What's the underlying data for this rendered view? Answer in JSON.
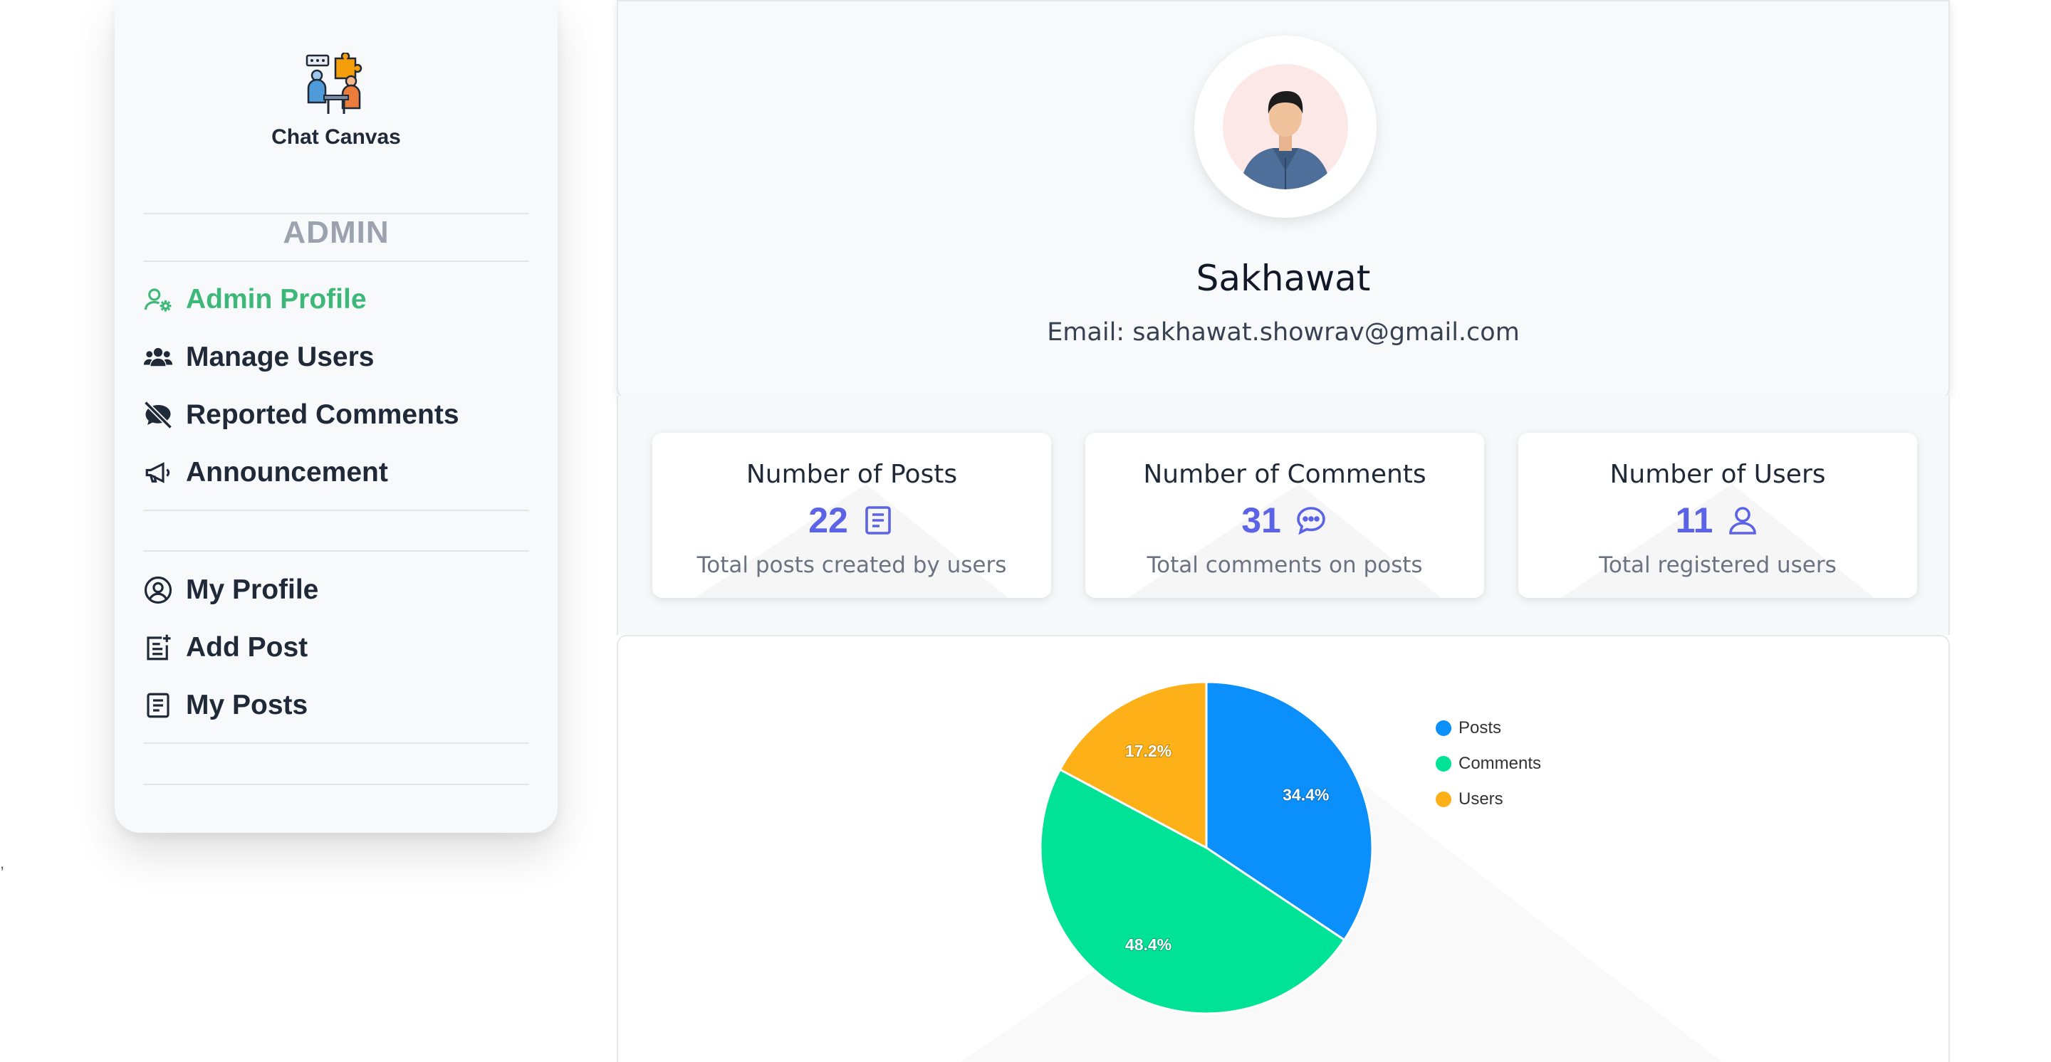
{
  "app": {
    "name": "Chat Canvas"
  },
  "sidebar": {
    "section_title": "ADMIN",
    "admin_items": [
      {
        "label": "Admin Profile",
        "icon": "user-gear-icon",
        "active": true
      },
      {
        "label": "Manage Users",
        "icon": "users-icon"
      },
      {
        "label": "Reported Comments",
        "icon": "comment-slash-icon"
      },
      {
        "label": "Announcement",
        "icon": "megaphone-icon"
      }
    ],
    "user_items": [
      {
        "label": "My Profile",
        "icon": "user-circle-icon"
      },
      {
        "label": "Add Post",
        "icon": "add-post-icon"
      },
      {
        "label": "My Posts",
        "icon": "document-icon"
      }
    ]
  },
  "profile": {
    "name": "Sakhawat",
    "email": "Email: sakhawat.showrav@gmail.com"
  },
  "stats": [
    {
      "title": "Number of Posts",
      "value": "22",
      "icon": "document-icon",
      "description": "Total posts created by users"
    },
    {
      "title": "Number of Comments",
      "value": "31",
      "icon": "chat-bubble-icon",
      "description": "Total comments on posts"
    },
    {
      "title": "Number of Users",
      "value": "11",
      "icon": "user-icon",
      "description": "Total registered users"
    }
  ],
  "colors": {
    "accent": "#3eb878",
    "stat_value": "#5b63e6",
    "posts": "#0a8ffb",
    "comments": "#00e396",
    "users": "#feb019"
  },
  "chart_data": {
    "type": "pie",
    "categories": [
      "Posts",
      "Comments",
      "Users"
    ],
    "values": [
      22,
      31,
      11
    ],
    "labels": [
      "34.4%",
      "48.4%",
      "17.2%"
    ],
    "colors": [
      "#0a8ffb",
      "#00e396",
      "#feb019"
    ],
    "legend": "right"
  },
  "stray_mark": ","
}
